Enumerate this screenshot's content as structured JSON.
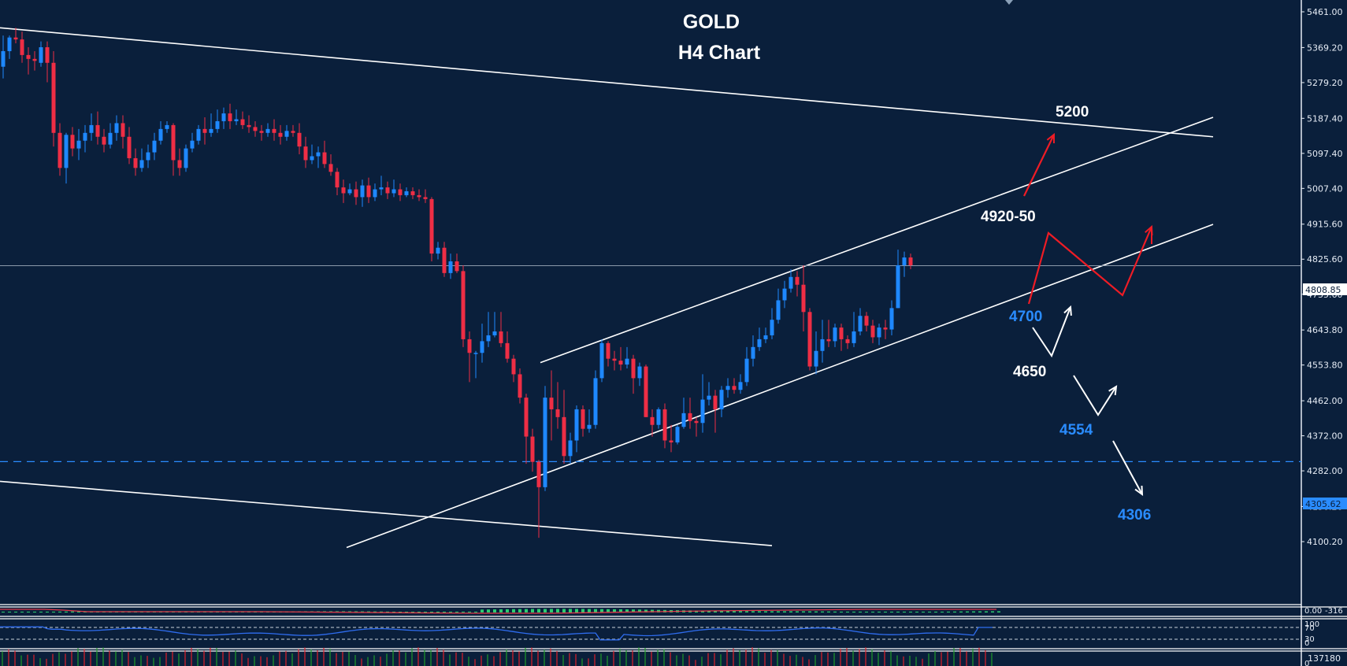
{
  "chart_data": {
    "type": "candlestick",
    "title": "GOLD",
    "subtitle": "H4 Chart",
    "xlabel": "",
    "ylabel": "",
    "ylim": [
      4080,
      5470
    ],
    "y_ticks": [
      "5461.00",
      "5369.20",
      "5279.20",
      "5187.40",
      "5097.40",
      "5007.40",
      "4915.60",
      "4825.60",
      "4735.60",
      "4643.80",
      "4553.80",
      "4462.00",
      "4372.00",
      "4282.00",
      "4190.20",
      "4100.20"
    ],
    "current_price": "4808.85",
    "horizontal_level": "4305.62",
    "colors": {
      "background": "#0a1f3b",
      "bull": "#1e88ff",
      "bear": "#ee2e45",
      "axis_text": "#e6ecf5",
      "trendline": "#ffffff",
      "bull_scenario": "#ee1c25",
      "bear_scenario": "#ffffff",
      "level_blue": "#2a8cff",
      "current_price_line": "#8c9aaa"
    },
    "annotations": [
      {
        "text": "5200",
        "color": "#ffffff"
      },
      {
        "text": "4920-50",
        "color": "#ffffff"
      },
      {
        "text": "4700",
        "color": "#2a8cff"
      },
      {
        "text": "4650",
        "color": "#ffffff"
      },
      {
        "text": "4554",
        "color": "#2a8cff"
      },
      {
        "text": "4306",
        "color": "#2a8cff"
      }
    ],
    "trendlines": [
      {
        "name": "upper-descending",
        "from": [
          0,
          5420
        ],
        "to": [
          1540,
          5140
        ]
      },
      {
        "name": "lower-descending",
        "from": [
          0,
          4255
        ],
        "to": [
          980,
          4090
        ]
      },
      {
        "name": "channel-upper",
        "from": [
          686,
          4560
        ],
        "to": [
          1540,
          5190
        ]
      },
      {
        "name": "channel-lower",
        "from": [
          440,
          4085
        ],
        "to": [
          1540,
          4915
        ]
      }
    ],
    "candles": [
      [
        5320,
        5360,
        5400,
        5290
      ],
      [
        5360,
        5395,
        5400,
        5340
      ],
      [
        5395,
        5390,
        5420,
        5380
      ],
      [
        5390,
        5350,
        5410,
        5330
      ],
      [
        5350,
        5340,
        5370,
        5300
      ],
      [
        5340,
        5335,
        5360,
        5310
      ],
      [
        5330,
        5370,
        5385,
        5320
      ],
      [
        5370,
        5330,
        5385,
        5280
      ],
      [
        5330,
        5150,
        5360,
        5115
      ],
      [
        5150,
        5060,
        5175,
        5040
      ],
      [
        5060,
        5145,
        5150,
        5020
      ],
      [
        5145,
        5110,
        5165,
        5090
      ],
      [
        5110,
        5130,
        5160,
        5080
      ],
      [
        5130,
        5150,
        5170,
        5100
      ],
      [
        5150,
        5170,
        5200,
        5130
      ],
      [
        5170,
        5140,
        5205,
        5120
      ],
      [
        5140,
        5120,
        5160,
        5100
      ],
      [
        5120,
        5150,
        5175,
        5110
      ],
      [
        5150,
        5175,
        5195,
        5130
      ],
      [
        5175,
        5140,
        5195,
        5110
      ],
      [
        5140,
        5085,
        5165,
        5070
      ],
      [
        5085,
        5060,
        5110,
        5040
      ],
      [
        5060,
        5080,
        5110,
        5050
      ],
      [
        5080,
        5100,
        5120,
        5060
      ],
      [
        5100,
        5130,
        5150,
        5080
      ],
      [
        5130,
        5160,
        5180,
        5120
      ],
      [
        5160,
        5170,
        5180,
        5150
      ],
      [
        5170,
        5080,
        5175,
        5040
      ],
      [
        5080,
        5060,
        5110,
        5040
      ],
      [
        5060,
        5110,
        5120,
        5050
      ],
      [
        5110,
        5130,
        5150,
        5100
      ],
      [
        5130,
        5160,
        5170,
        5120
      ],
      [
        5160,
        5150,
        5190,
        5120
      ],
      [
        5150,
        5160,
        5200,
        5140
      ],
      [
        5160,
        5180,
        5210,
        5150
      ],
      [
        5180,
        5200,
        5215,
        5160
      ],
      [
        5200,
        5180,
        5225,
        5160
      ],
      [
        5180,
        5185,
        5210,
        5170
      ],
      [
        5185,
        5170,
        5205,
        5160
      ],
      [
        5170,
        5165,
        5195,
        5150
      ],
      [
        5165,
        5155,
        5180,
        5140
      ],
      [
        5155,
        5150,
        5170,
        5130
      ],
      [
        5150,
        5160,
        5175,
        5140
      ],
      [
        5160,
        5150,
        5185,
        5130
      ],
      [
        5150,
        5140,
        5170,
        5120
      ],
      [
        5140,
        5155,
        5170,
        5130
      ],
      [
        5155,
        5150,
        5170,
        5140
      ],
      [
        5150,
        5115,
        5175,
        5095
      ],
      [
        5115,
        5080,
        5140,
        5060
      ],
      [
        5080,
        5090,
        5120,
        5070
      ],
      [
        5090,
        5100,
        5115,
        5060
      ],
      [
        5100,
        5070,
        5130,
        5060
      ],
      [
        5070,
        5050,
        5095,
        5040
      ],
      [
        5050,
        5010,
        5060,
        4990
      ],
      [
        5010,
        4995,
        5030,
        4970
      ],
      [
        4995,
        5005,
        5020,
        4990
      ],
      [
        5005,
        4985,
        5025,
        4965
      ],
      [
        4985,
        5015,
        5030,
        4960
      ],
      [
        5015,
        4985,
        5035,
        4970
      ],
      [
        4985,
        5005,
        5020,
        4975
      ],
      [
        5005,
        5010,
        5040,
        4990
      ],
      [
        5010,
        4995,
        5025,
        4980
      ],
      [
        4995,
        5005,
        5030,
        4985
      ],
      [
        5005,
        4990,
        5020,
        4975
      ],
      [
        4990,
        5000,
        5010,
        4985
      ],
      [
        5000,
        4990,
        5010,
        4980
      ],
      [
        4990,
        4985,
        5005,
        4975
      ],
      [
        4985,
        4980,
        5005,
        4970
      ],
      [
        4980,
        4840,
        4985,
        4820
      ],
      [
        4840,
        4855,
        4870,
        4825
      ],
      [
        4855,
        4790,
        4870,
        4780
      ],
      [
        4790,
        4820,
        4840,
        4775
      ],
      [
        4820,
        4795,
        4840,
        4790
      ],
      [
        4795,
        4620,
        4810,
        4600
      ],
      [
        4620,
        4585,
        4640,
        4510
      ],
      [
        4585,
        4585,
        4590,
        4520
      ],
      [
        4585,
        4615,
        4660,
        4560
      ],
      [
        4615,
        4630,
        4690,
        4600
      ],
      [
        4630,
        4640,
        4690,
        4625
      ],
      [
        4640,
        4610,
        4690,
        4600
      ],
      [
        4610,
        4570,
        4640,
        4560
      ],
      [
        4570,
        4530,
        4580,
        4510
      ],
      [
        4530,
        4470,
        4545,
        4455
      ],
      [
        4470,
        4370,
        4480,
        4300
      ],
      [
        4370,
        4305,
        4390,
        4280
      ],
      [
        4305,
        4240,
        4310,
        4110
      ],
      [
        4240,
        4470,
        4500,
        4230
      ],
      [
        4470,
        4440,
        4540,
        4360
      ],
      [
        4440,
        4420,
        4510,
        4390
      ],
      [
        4420,
        4320,
        4490,
        4300
      ],
      [
        4320,
        4360,
        4380,
        4300
      ],
      [
        4360,
        4440,
        4450,
        4330
      ],
      [
        4440,
        4390,
        4450,
        4370
      ],
      [
        4390,
        4400,
        4440,
        4380
      ],
      [
        4400,
        4520,
        4540,
        4390
      ],
      [
        4520,
        4610,
        4620,
        4510
      ],
      [
        4610,
        4570,
        4615,
        4550
      ],
      [
        4570,
        4565,
        4590,
        4540
      ],
      [
        4565,
        4555,
        4600,
        4540
      ],
      [
        4555,
        4570,
        4600,
        4545
      ],
      [
        4570,
        4520,
        4580,
        4480
      ],
      [
        4520,
        4550,
        4560,
        4500
      ],
      [
        4550,
        4420,
        4555,
        4420
      ],
      [
        4420,
        4400,
        4440,
        4370
      ],
      [
        4400,
        4440,
        4445,
        4390
      ],
      [
        4440,
        4360,
        4455,
        4340
      ],
      [
        4360,
        4355,
        4400,
        4330
      ],
      [
        4355,
        4395,
        4400,
        4350
      ],
      [
        4395,
        4430,
        4470,
        4390
      ],
      [
        4430,
        4410,
        4470,
        4390
      ],
      [
        4410,
        4405,
        4420,
        4370
      ],
      [
        4405,
        4465,
        4530,
        4380
      ],
      [
        4465,
        4475,
        4510,
        4450
      ],
      [
        4475,
        4440,
        4490,
        4380
      ],
      [
        4440,
        4490,
        4500,
        4420
      ],
      [
        4490,
        4500,
        4520,
        4470
      ],
      [
        4500,
        4490,
        4520,
        4480
      ],
      [
        4490,
        4510,
        4530,
        4480
      ],
      [
        4510,
        4570,
        4600,
        4500
      ],
      [
        4570,
        4600,
        4630,
        4550
      ],
      [
        4600,
        4620,
        4650,
        4590
      ],
      [
        4620,
        4630,
        4650,
        4610
      ],
      [
        4630,
        4670,
        4700,
        4620
      ],
      [
        4670,
        4720,
        4750,
        4660
      ],
      [
        4720,
        4750,
        4770,
        4700
      ],
      [
        4750,
        4780,
        4800,
        4740
      ],
      [
        4780,
        4760,
        4795,
        4730
      ],
      [
        4760,
        4690,
        4810,
        4640
      ],
      [
        4690,
        4550,
        4700,
        4540
      ],
      [
        4550,
        4590,
        4640,
        4530
      ],
      [
        4590,
        4620,
        4670,
        4560
      ],
      [
        4620,
        4615,
        4670,
        4600
      ],
      [
        4615,
        4650,
        4660,
        4600
      ],
      [
        4650,
        4620,
        4660,
        4590
      ],
      [
        4620,
        4610,
        4630,
        4595
      ],
      [
        4610,
        4640,
        4690,
        4600
      ],
      [
        4640,
        4680,
        4700,
        4630
      ],
      [
        4680,
        4655,
        4690,
        4640
      ],
      [
        4655,
        4625,
        4670,
        4610
      ],
      [
        4625,
        4650,
        4660,
        4605
      ],
      [
        4650,
        4645,
        4670,
        4620
      ],
      [
        4645,
        4700,
        4720,
        4630
      ],
      [
        4700,
        4810,
        4850,
        4700
      ],
      [
        4810,
        4830,
        4845,
        4780
      ],
      [
        4830,
        4810,
        4840,
        4800
      ]
    ],
    "scenarios": {
      "bullish_path": [
        [
          "4700",
          "4920-50"
        ],
        [
          "4920-50",
          "4808"
        ],
        [
          "4808",
          "4960"
        ]
      ],
      "bullish_breakout_target": "5200",
      "bearish_path": [
        [
          "4650",
          "4700"
        ],
        [
          "4554",
          "4580"
        ],
        [
          "4554",
          "4306"
        ]
      ]
    },
    "subpanels": [
      {
        "name": "histogram-indicator",
        "labels": [
          "0.00",
          "-316"
        ]
      },
      {
        "name": "rsi",
        "levels": [
          "100",
          "70",
          "30",
          "0"
        ]
      },
      {
        "name": "volume",
        "labels": [
          "137180",
          "0"
        ]
      }
    ]
  }
}
